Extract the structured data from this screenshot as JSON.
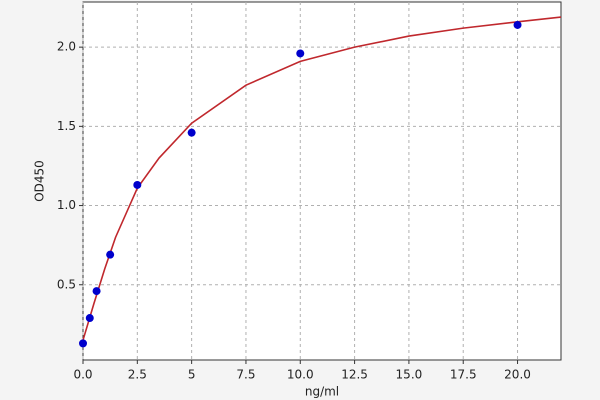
{
  "chart_data": {
    "type": "scatter",
    "x_label": "ng/ml",
    "y_label": "OD450",
    "xlim": [
      0,
      22
    ],
    "ylim": [
      0.025,
      2.285
    ],
    "xticks": [
      {
        "value": 0,
        "label": "0.0"
      },
      2.5,
      5,
      {
        "value": 7.5,
        "label": "7.5"
      },
      {
        "value": 10,
        "label": "10.0"
      },
      12.5,
      {
        "value": 15,
        "label": "15.0"
      },
      17.5,
      {
        "value": 20,
        "label": "20.0"
      }
    ],
    "yticks": [
      0.5,
      {
        "value": 1,
        "label": "1.0"
      },
      1.5,
      {
        "value": 2,
        "label": "2.0"
      }
    ],
    "grid": true,
    "series": [
      {
        "type": "scatter",
        "color": "#0000cc",
        "x": [
          0,
          0.312,
          0.625,
          1.25,
          2.5,
          5,
          10,
          20
        ],
        "values": [
          0.13,
          0.29,
          0.46,
          0.69,
          1.13,
          1.46,
          1.96,
          2.14
        ]
      },
      {
        "type": "line",
        "color": "#c0282d",
        "x": [
          0,
          0.5,
          1,
          1.5,
          2.5,
          3.5,
          5,
          7.5,
          10,
          12.5,
          15,
          17.5,
          20,
          22
        ],
        "values": [
          0.15,
          0.38,
          0.6,
          0.8,
          1.11,
          1.3,
          1.52,
          1.76,
          1.91,
          2.0,
          2.07,
          2.12,
          2.16,
          2.19
        ]
      }
    ]
  }
}
